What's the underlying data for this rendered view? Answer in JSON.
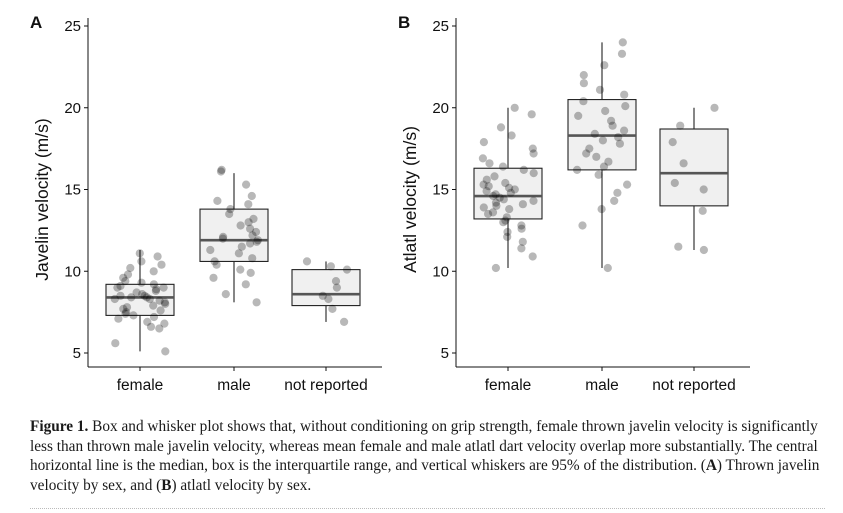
{
  "chart_data": [
    {
      "type": "box",
      "panel_label": "A",
      "ylabel": "Javelin velocity (m/s)",
      "xlabel": "",
      "categories": [
        "female",
        "male",
        "not reported"
      ],
      "ylim": [
        5,
        25
      ],
      "yticks": [
        5,
        10,
        15,
        20,
        25
      ],
      "boxes": [
        {
          "category": "female",
          "whisker_low": 5.1,
          "q1": 7.3,
          "median": 8.4,
          "q3": 9.2,
          "whisker_high": 11.3
        },
        {
          "category": "male",
          "whisker_low": 8.1,
          "q1": 10.6,
          "median": 11.9,
          "q3": 13.8,
          "whisker_high": 16.0
        },
        {
          "category": "not reported",
          "whisker_low": 6.9,
          "q1": 7.9,
          "median": 8.6,
          "q3": 10.1,
          "whisker_high": 10.6
        }
      ],
      "points": [
        {
          "category": "female",
          "values": [
            5.1,
            5.6,
            6.5,
            6.6,
            6.8,
            6.9,
            7.1,
            7.2,
            7.3,
            7.4,
            7.5,
            7.6,
            7.7,
            7.8,
            7.9,
            8.0,
            8.1,
            8.2,
            8.3,
            8.3,
            8.4,
            8.4,
            8.5,
            8.5,
            8.6,
            8.7,
            8.8,
            8.9,
            9.0,
            9.0,
            9.1,
            9.2,
            9.3,
            9.4,
            9.6,
            9.8,
            10.0,
            10.2,
            10.4,
            10.6,
            10.9,
            11.1
          ]
        },
        {
          "category": "male",
          "values": [
            8.1,
            8.6,
            9.2,
            9.6,
            9.9,
            10.1,
            10.4,
            10.6,
            10.8,
            11.1,
            11.3,
            11.5,
            11.7,
            11.8,
            11.9,
            12.0,
            12.1,
            12.2,
            12.4,
            12.6,
            12.8,
            13.0,
            13.2,
            13.5,
            13.8,
            14.1,
            14.3,
            14.6,
            15.3,
            16.1,
            16.2
          ]
        },
        {
          "category": "not reported",
          "values": [
            6.9,
            7.7,
            8.3,
            8.5,
            9.0,
            9.4,
            10.1,
            10.3,
            10.6
          ]
        }
      ],
      "grid": false
    },
    {
      "type": "box",
      "panel_label": "B",
      "ylabel": "Atlatl velocity (m/s)",
      "xlabel": "",
      "categories": [
        "female",
        "male",
        "not reported"
      ],
      "ylim": [
        5,
        25
      ],
      "yticks": [
        5,
        10,
        15,
        20,
        25
      ],
      "boxes": [
        {
          "category": "female",
          "whisker_low": 10.2,
          "q1": 13.2,
          "median": 14.6,
          "q3": 16.3,
          "whisker_high": 20.0
        },
        {
          "category": "male",
          "whisker_low": 10.2,
          "q1": 16.2,
          "median": 18.3,
          "q3": 20.5,
          "whisker_high": 24.0
        },
        {
          "category": "not reported",
          "whisker_low": 11.3,
          "q1": 14.0,
          "median": 16.0,
          "q3": 18.7,
          "whisker_high": 20.0
        }
      ],
      "points": [
        {
          "category": "female",
          "values": [
            10.2,
            10.9,
            11.4,
            11.8,
            12.1,
            12.4,
            12.6,
            12.8,
            13.0,
            13.1,
            13.3,
            13.5,
            13.6,
            13.8,
            13.9,
            14.0,
            14.1,
            14.2,
            14.3,
            14.4,
            14.5,
            14.6,
            14.7,
            14.8,
            14.9,
            15.0,
            15.1,
            15.2,
            15.3,
            15.4,
            15.6,
            15.8,
            16.0,
            16.2,
            16.4,
            16.6,
            16.9,
            17.2,
            17.5,
            17.9,
            18.3,
            18.8,
            19.6,
            20.0
          ]
        },
        {
          "category": "male",
          "values": [
            10.2,
            12.8,
            13.8,
            14.3,
            14.8,
            15.3,
            15.9,
            16.2,
            16.4,
            16.7,
            17.0,
            17.2,
            17.5,
            17.8,
            18.0,
            18.2,
            18.4,
            18.6,
            18.9,
            19.2,
            19.5,
            19.8,
            20.1,
            20.4,
            20.8,
            21.1,
            21.5,
            22.0,
            22.6,
            23.3,
            24.0
          ]
        },
        {
          "category": "not reported",
          "values": [
            11.3,
            11.5,
            13.7,
            15.0,
            15.4,
            16.6,
            17.9,
            18.9,
            20.0
          ]
        }
      ],
      "grid": false
    }
  ],
  "caption": {
    "figure_label": "Figure 1.",
    "text_1": " Box and whisker plot shows that, without conditioning on grip strength, female thrown javelin velocity is significantly less than thrown male javelin velocity, whereas mean female and male atlatl dart velocity overlap more substantially. The central horizontal line is the median, box is the interquartile range, and vertical whiskers are 95% of the distribution. (",
    "label_a": "A",
    "text_2": ") Thrown javelin velocity by sex, and (",
    "label_b": "B",
    "text_3": ") atlatl velocity by sex."
  }
}
